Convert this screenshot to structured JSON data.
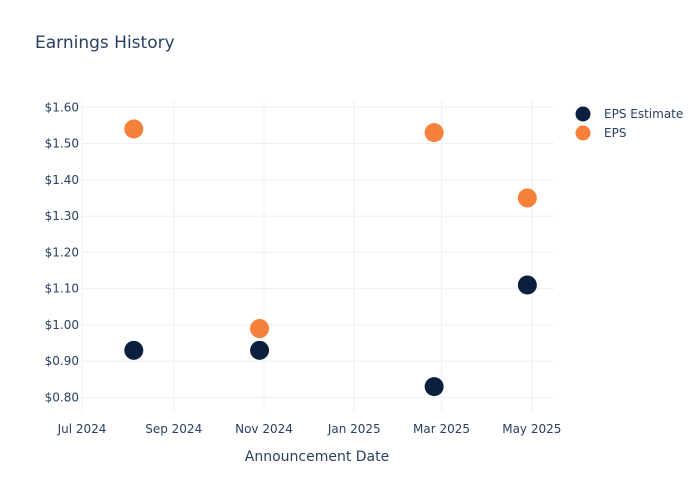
{
  "chart_data": {
    "type": "scatter",
    "title": "Earnings History",
    "xlabel": "Announcement Date",
    "ylabel": "",
    "x_ticks": [
      "Jul 2024",
      "Sep 2024",
      "Nov 2024",
      "Jan 2025",
      "Mar 2025",
      "May 2025"
    ],
    "x_tick_dates": [
      "2024-07-01",
      "2024-09-01",
      "2024-11-01",
      "2025-01-01",
      "2025-03-01",
      "2025-05-01"
    ],
    "x_range": [
      "2024-07-01",
      "2025-05-16"
    ],
    "y_ticks": [
      "$0.80",
      "$0.90",
      "$1.00",
      "$1.10",
      "$1.20",
      "$1.30",
      "$1.40",
      "$1.50",
      "$1.60"
    ],
    "y_tick_values": [
      0.8,
      0.9,
      1.0,
      1.1,
      1.2,
      1.3,
      1.4,
      1.5,
      1.6
    ],
    "ylim": [
      0.76,
      1.62
    ],
    "grid": true,
    "legend_position": "top-right",
    "series": [
      {
        "name": "EPS Estimate",
        "color": "#0b1f3f",
        "points": [
          {
            "x": "2024-08-05",
            "y": 0.93
          },
          {
            "x": "2024-10-29",
            "y": 0.93
          },
          {
            "x": "2025-02-24",
            "y": 0.83
          },
          {
            "x": "2025-04-28",
            "y": 1.11
          }
        ]
      },
      {
        "name": "EPS",
        "color": "#f7813a",
        "points": [
          {
            "x": "2024-08-05",
            "y": 1.54
          },
          {
            "x": "2024-10-29",
            "y": 0.99
          },
          {
            "x": "2025-02-24",
            "y": 1.53
          },
          {
            "x": "2025-04-28",
            "y": 1.35
          }
        ]
      }
    ]
  }
}
